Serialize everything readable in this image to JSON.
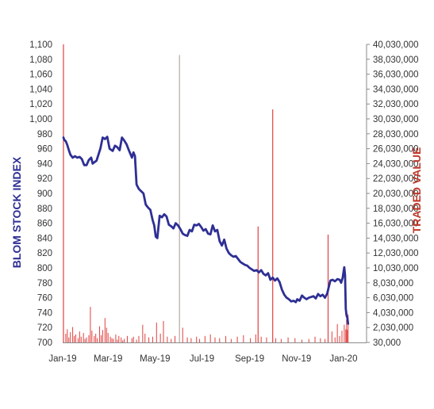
{
  "chart_data": {
    "type": "bar+line",
    "title": "",
    "y_left_label": "BLOM STOCK INDEX",
    "y_right_label": "TRADED VALUE",
    "y_left_ticks": [
      "1,100",
      "1,080",
      "1,060",
      "1,040",
      "1,020",
      "1,000",
      "980",
      "960",
      "940",
      "920",
      "900",
      "880",
      "860",
      "840",
      "820",
      "800",
      "780",
      "760",
      "740",
      "720",
      "700"
    ],
    "y_left_lim": [
      700,
      1100
    ],
    "y_right_ticks": [
      "40,030,000",
      "38,030,000",
      "36,030,000",
      "34,030,000",
      "32,030,000",
      "30,030,000",
      "28,030,000",
      "26,030,000",
      "24,030,000",
      "22,030,000",
      "20,030,000",
      "18,030,000",
      "16,030,000",
      "14,030,000",
      "12,030,000",
      "10,030,000",
      "8,030,000",
      "6,030,000",
      "4,030,000",
      "2,030,000",
      "30,000"
    ],
    "y_right_lim": [
      30000,
      40030000
    ],
    "x_ticks": [
      "Jan-19",
      "Mar-19",
      "May-19",
      "Jul-19",
      "Sep-19",
      "Nov-19",
      "Jan-20"
    ],
    "x_lim": [
      "2019-01-01",
      "2020-01-31"
    ],
    "colors": {
      "index_line": "#2e2f94",
      "traded_value_bars": "#e0413f",
      "left_label": "#2e2f94",
      "right_label": "#c0392b",
      "gridline": "#c8c8c8"
    },
    "series": [
      {
        "name": "BLOM STOCK INDEX",
        "kind": "line",
        "axis": "left",
        "points": [
          [
            "2019-01-02",
            975
          ],
          [
            "2019-01-03",
            972
          ],
          [
            "2019-01-05",
            970
          ],
          [
            "2019-01-07",
            965
          ],
          [
            "2019-01-09",
            958
          ],
          [
            "2019-01-11",
            952
          ],
          [
            "2019-01-14",
            948
          ],
          [
            "2019-01-17",
            950
          ],
          [
            "2019-01-20",
            948
          ],
          [
            "2019-01-23",
            949
          ],
          [
            "2019-01-26",
            946
          ],
          [
            "2019-01-29",
            938
          ],
          [
            "2019-02-01",
            938
          ],
          [
            "2019-02-04",
            945
          ],
          [
            "2019-02-07",
            948
          ],
          [
            "2019-02-09",
            940
          ],
          [
            "2019-02-14",
            944
          ],
          [
            "2019-02-19",
            960
          ],
          [
            "2019-02-22",
            975
          ],
          [
            "2019-02-25",
            973
          ],
          [
            "2019-02-28",
            976
          ],
          [
            "2019-03-03",
            960
          ],
          [
            "2019-03-07",
            957
          ],
          [
            "2019-03-10",
            964
          ],
          [
            "2019-03-13",
            962
          ],
          [
            "2019-03-16",
            958
          ],
          [
            "2019-03-19",
            975
          ],
          [
            "2019-03-22",
            971
          ],
          [
            "2019-03-25",
            966
          ],
          [
            "2019-03-28",
            958
          ],
          [
            "2019-04-01",
            948
          ],
          [
            "2019-04-03",
            955
          ],
          [
            "2019-04-05",
            950
          ],
          [
            "2019-04-07",
            912
          ],
          [
            "2019-04-10",
            906
          ],
          [
            "2019-04-13",
            903
          ],
          [
            "2019-04-16",
            900
          ],
          [
            "2019-04-19",
            885
          ],
          [
            "2019-04-22",
            881
          ],
          [
            "2019-04-25",
            878
          ],
          [
            "2019-04-28",
            864
          ],
          [
            "2019-04-30",
            857
          ],
          [
            "2019-05-02",
            842
          ],
          [
            "2019-05-04",
            840
          ],
          [
            "2019-05-07",
            870
          ],
          [
            "2019-05-10",
            868
          ],
          [
            "2019-05-13",
            872
          ],
          [
            "2019-05-16",
            869
          ],
          [
            "2019-05-19",
            858
          ],
          [
            "2019-05-22",
            856
          ],
          [
            "2019-05-25",
            853
          ],
          [
            "2019-05-28",
            860
          ],
          [
            "2019-05-31",
            857
          ],
          [
            "2019-06-03",
            852
          ],
          [
            "2019-06-06",
            846
          ],
          [
            "2019-06-09",
            844
          ],
          [
            "2019-06-12",
            843
          ],
          [
            "2019-06-15",
            851
          ],
          [
            "2019-06-18",
            849
          ],
          [
            "2019-06-21",
            858
          ],
          [
            "2019-06-24",
            857
          ],
          [
            "2019-06-27",
            859
          ],
          [
            "2019-06-30",
            855
          ],
          [
            "2019-07-03",
            850
          ],
          [
            "2019-07-06",
            852
          ],
          [
            "2019-07-09",
            846
          ],
          [
            "2019-07-12",
            845
          ],
          [
            "2019-07-15",
            857
          ],
          [
            "2019-07-18",
            849
          ],
          [
            "2019-07-21",
            851
          ],
          [
            "2019-07-24",
            836
          ],
          [
            "2019-07-27",
            830
          ],
          [
            "2019-07-30",
            838
          ],
          [
            "2019-08-02",
            826
          ],
          [
            "2019-08-05",
            820
          ],
          [
            "2019-08-08",
            817
          ],
          [
            "2019-08-11",
            815
          ],
          [
            "2019-08-14",
            816
          ],
          [
            "2019-08-17",
            812
          ],
          [
            "2019-08-20",
            808
          ],
          [
            "2019-08-23",
            806
          ],
          [
            "2019-08-26",
            804
          ],
          [
            "2019-08-29",
            803
          ],
          [
            "2019-09-01",
            800
          ],
          [
            "2019-09-04",
            798
          ],
          [
            "2019-09-07",
            796
          ],
          [
            "2019-09-10",
            797
          ],
          [
            "2019-09-13",
            794
          ],
          [
            "2019-09-16",
            797
          ],
          [
            "2019-09-19",
            792
          ],
          [
            "2019-09-22",
            790
          ],
          [
            "2019-09-25",
            793
          ],
          [
            "2019-09-28",
            784
          ],
          [
            "2019-10-01",
            787
          ],
          [
            "2019-10-04",
            783
          ],
          [
            "2019-10-07",
            786
          ],
          [
            "2019-10-10",
            781
          ],
          [
            "2019-10-13",
            771
          ],
          [
            "2019-10-16",
            764
          ],
          [
            "2019-10-19",
            760
          ],
          [
            "2019-10-22",
            758
          ],
          [
            "2019-10-25",
            755
          ],
          [
            "2019-10-28",
            756
          ],
          [
            "2019-10-31",
            754
          ],
          [
            "2019-11-02",
            758
          ],
          [
            "2019-11-05",
            756
          ],
          [
            "2019-11-08",
            763
          ],
          [
            "2019-11-11",
            760
          ],
          [
            "2019-11-14",
            758
          ],
          [
            "2019-11-17",
            760
          ],
          [
            "2019-11-20",
            761
          ],
          [
            "2019-11-23",
            762
          ],
          [
            "2019-11-26",
            759
          ],
          [
            "2019-11-29",
            765
          ],
          [
            "2019-12-02",
            762
          ],
          [
            "2019-12-05",
            764
          ],
          [
            "2019-12-08",
            760
          ],
          [
            "2019-12-11",
            766
          ],
          [
            "2019-12-13",
            775
          ],
          [
            "2019-12-15",
            783
          ],
          [
            "2019-12-18",
            784
          ],
          [
            "2019-12-21",
            782
          ],
          [
            "2019-12-24",
            785
          ],
          [
            "2019-12-27",
            784
          ],
          [
            "2019-12-29",
            780
          ],
          [
            "2019-12-31",
            787
          ],
          [
            "2020-01-02",
            801
          ],
          [
            "2020-01-03",
            790
          ],
          [
            "2020-01-04",
            745
          ],
          [
            "2020-01-05",
            736
          ],
          [
            "2020-01-06",
            733
          ],
          [
            "2020-01-07",
            725
          ]
        ]
      },
      {
        "name": "TRADED VALUE",
        "kind": "bar",
        "axis": "right",
        "points": [
          [
            "2019-01-02",
            40030000
          ],
          [
            "2019-01-05",
            1200000
          ],
          [
            "2019-01-07",
            1800000
          ],
          [
            "2019-01-09",
            700000
          ],
          [
            "2019-01-11",
            1400000
          ],
          [
            "2019-01-14",
            2100000
          ],
          [
            "2019-01-16",
            900000
          ],
          [
            "2019-01-18",
            1100000
          ],
          [
            "2019-01-21",
            600000
          ],
          [
            "2019-01-23",
            1500000
          ],
          [
            "2019-01-25",
            800000
          ],
          [
            "2019-01-28",
            1300000
          ],
          [
            "2019-01-30",
            500000
          ],
          [
            "2019-02-01",
            700000
          ],
          [
            "2019-02-04",
            1000000
          ],
          [
            "2019-02-06",
            4800000
          ],
          [
            "2019-02-08",
            1600000
          ],
          [
            "2019-02-11",
            900000
          ],
          [
            "2019-02-13",
            1200000
          ],
          [
            "2019-02-15",
            600000
          ],
          [
            "2019-02-18",
            2200000
          ],
          [
            "2019-02-20",
            1000000
          ],
          [
            "2019-02-22",
            1700000
          ],
          [
            "2019-02-25",
            3300000
          ],
          [
            "2019-02-27",
            2000000
          ],
          [
            "2019-03-01",
            1300000
          ],
          [
            "2019-03-04",
            800000
          ],
          [
            "2019-03-06",
            600000
          ],
          [
            "2019-03-08",
            500000
          ],
          [
            "2019-03-11",
            1100000
          ],
          [
            "2019-03-13",
            400000
          ],
          [
            "2019-03-15",
            900000
          ],
          [
            "2019-03-18",
            700000
          ],
          [
            "2019-03-20",
            300000
          ],
          [
            "2019-03-22",
            500000
          ],
          [
            "2019-03-26",
            900000
          ],
          [
            "2019-04-01",
            600000
          ],
          [
            "2019-04-03",
            800000
          ],
          [
            "2019-04-07",
            400000
          ],
          [
            "2019-04-10",
            900000
          ],
          [
            "2019-04-15",
            2400000
          ],
          [
            "2019-04-18",
            1200000
          ],
          [
            "2019-04-23",
            700000
          ],
          [
            "2019-04-28",
            800000
          ],
          [
            "2019-05-03",
            2700000
          ],
          [
            "2019-05-08",
            1200000
          ],
          [
            "2019-05-12",
            2900000
          ],
          [
            "2019-05-17",
            800000
          ],
          [
            "2019-05-22",
            500000
          ],
          [
            "2019-05-27",
            900000
          ],
          [
            "2019-06-02",
            38600000
          ],
          [
            "2019-06-06",
            2000000
          ],
          [
            "2019-06-12",
            700000
          ],
          [
            "2019-06-17",
            600000
          ],
          [
            "2019-06-24",
            800000
          ],
          [
            "2019-06-28",
            500000
          ],
          [
            "2019-07-05",
            900000
          ],
          [
            "2019-07-12",
            1100000
          ],
          [
            "2019-07-18",
            700000
          ],
          [
            "2019-07-24",
            600000
          ],
          [
            "2019-08-01",
            900000
          ],
          [
            "2019-08-08",
            500000
          ],
          [
            "2019-08-16",
            800000
          ],
          [
            "2019-08-24",
            1000000
          ],
          [
            "2019-09-02",
            600000
          ],
          [
            "2019-09-09",
            1100000
          ],
          [
            "2019-09-12",
            15600000
          ],
          [
            "2019-09-16",
            800000
          ],
          [
            "2019-09-23",
            700000
          ],
          [
            "2019-10-01",
            31300000
          ],
          [
            "2019-10-05",
            600000
          ],
          [
            "2019-10-12",
            500000
          ],
          [
            "2019-10-21",
            700000
          ],
          [
            "2019-10-30",
            600000
          ],
          [
            "2019-11-08",
            400000
          ],
          [
            "2019-11-17",
            500000
          ],
          [
            "2019-11-25",
            800000
          ],
          [
            "2019-12-02",
            600000
          ],
          [
            "2019-12-08",
            500000
          ],
          [
            "2019-12-12",
            14500000
          ],
          [
            "2019-12-17",
            1500000
          ],
          [
            "2019-12-21",
            700000
          ],
          [
            "2019-12-24",
            2500000
          ],
          [
            "2019-12-27",
            900000
          ],
          [
            "2019-12-30",
            1600000
          ],
          [
            "2020-01-02",
            2400000
          ],
          [
            "2020-01-04",
            1800000
          ],
          [
            "2020-01-05",
            3100000
          ],
          [
            "2020-01-06",
            1700000
          ],
          [
            "2020-01-07",
            3800000
          ]
        ]
      }
    ],
    "grid": false,
    "legend": "none"
  }
}
